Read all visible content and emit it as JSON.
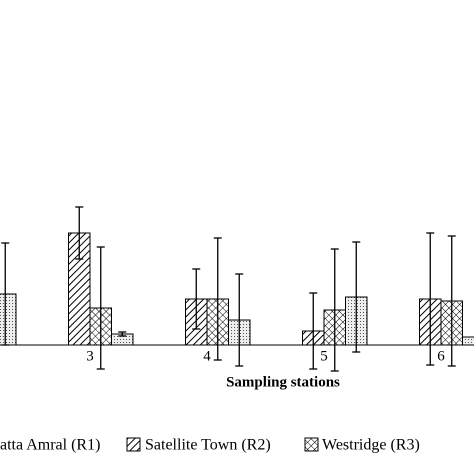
{
  "chart_data": {
    "type": "bar",
    "xlabel": "Sampling stations",
    "categories": [
      null,
      "3",
      "4",
      "5",
      "6"
    ],
    "ylim": [
      0,
      150
    ],
    "series": [
      {
        "name": "atta Amral (R1)",
        "color": "#000000",
        "pattern": "solid",
        "values": [
          0,
          0,
          0,
          0,
          0
        ],
        "errors": [
          0,
          0,
          0,
          0,
          0
        ]
      },
      {
        "name": "Satellite Town (R2)",
        "color": "#000000",
        "pattern": "diagonal",
        "values": [
          0,
          112,
          46,
          14,
          46
        ],
        "errors": [
          0,
          26,
          30,
          38,
          66
        ]
      },
      {
        "name": "Westridge (R3)",
        "color": "#000000",
        "pattern": "cross",
        "values": [
          0,
          37,
          46,
          35,
          44
        ],
        "errors": [
          0,
          61,
          61,
          61,
          65
        ]
      },
      {
        "color": "#000000",
        "pattern": "dots",
        "values": [
          51,
          11,
          25,
          48,
          8
        ],
        "errors": [
          51,
          2,
          46,
          55,
          0
        ]
      }
    ]
  }
}
